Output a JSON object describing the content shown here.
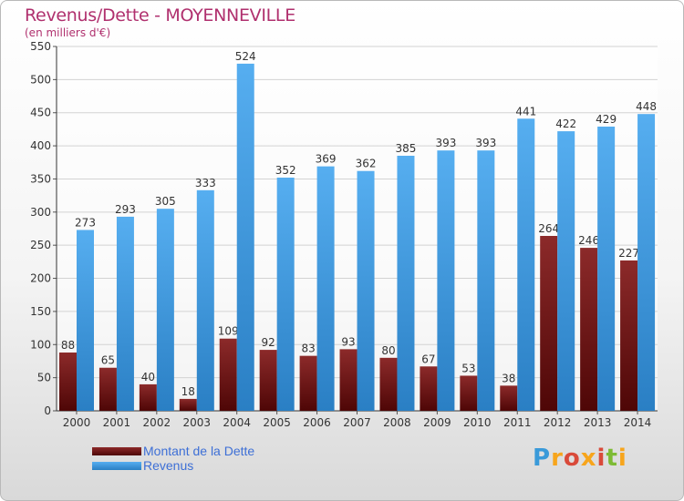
{
  "header": {
    "title": "Revenus/Dette - MOYENNEVILLE",
    "subtitle": "(en milliers d'€)"
  },
  "brand": {
    "logo_text": "Proxiti"
  },
  "colors": {
    "title": "#b0306e",
    "debt": "#7a1717",
    "revenue": "#3a98de",
    "legend_text": "#3d6fd6"
  },
  "chart_data": {
    "type": "bar",
    "title": "Revenus/Dette - MOYENNEVILLE",
    "subtitle": "(en milliers d'€)",
    "categories": [
      "2000",
      "2001",
      "2002",
      "2003",
      "2004",
      "2005",
      "2006",
      "2007",
      "2008",
      "2009",
      "2010",
      "2011",
      "2012",
      "2013",
      "2014"
    ],
    "series": [
      {
        "name": "Montant de la Dette",
        "color": "#7a1717",
        "values": [
          88,
          65,
          40,
          18,
          109,
          92,
          83,
          93,
          80,
          67,
          53,
          38,
          264,
          246,
          227
        ]
      },
      {
        "name": "Revenus",
        "color": "#3a98de",
        "values": [
          273,
          293,
          305,
          333,
          524,
          352,
          369,
          362,
          385,
          393,
          393,
          441,
          422,
          429,
          448
        ]
      }
    ],
    "ylim": [
      0,
      550
    ],
    "yticks": [
      0,
      50,
      100,
      150,
      200,
      250,
      300,
      350,
      400,
      450,
      500,
      550
    ],
    "grid": true,
    "legend": "bottom-left"
  }
}
